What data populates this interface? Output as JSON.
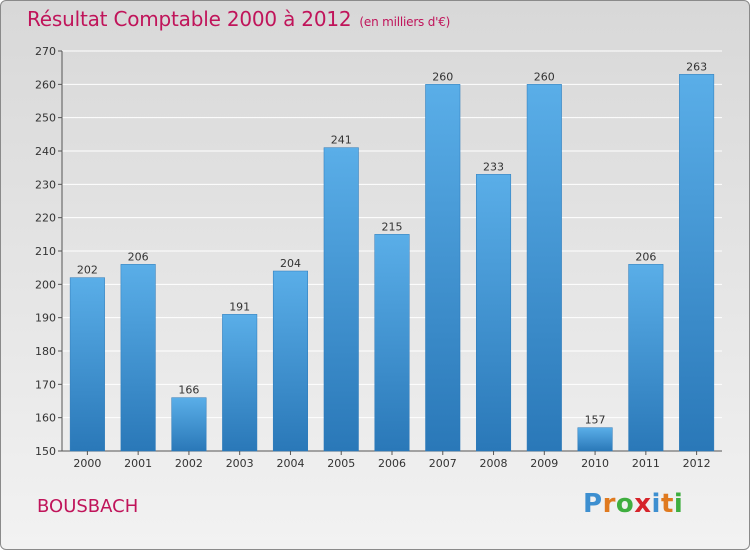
{
  "page": {
    "title": "Résultat Comptable 2000 à 2012",
    "unit": "(en milliers d'€)",
    "place": "BOUSBACH",
    "logo": "Proxiti",
    "logo_letters": [
      {
        "ch": "P",
        "color": "#3d8fd0"
      },
      {
        "ch": "r",
        "color": "#e07a1f"
      },
      {
        "ch": "o",
        "color": "#3fae3f"
      },
      {
        "ch": "x",
        "color": "#d6232a"
      },
      {
        "ch": "i",
        "color": "#3d8fd0"
      },
      {
        "ch": "t",
        "color": "#e07a1f"
      },
      {
        "ch": "i",
        "color": "#3fae3f"
      }
    ]
  },
  "colors": {
    "title": "#c0145a",
    "bar_light": "#5aaee8",
    "bar_dark": "#2a78b8",
    "grid": "#ffffff"
  },
  "chart_data": {
    "type": "bar",
    "title": "Résultat Comptable 2000 à 2012",
    "subtitle": "(en milliers d'€)",
    "xlabel": "",
    "ylabel": "",
    "categories": [
      "2000",
      "2001",
      "2002",
      "2003",
      "2004",
      "2005",
      "2006",
      "2007",
      "2008",
      "2009",
      "2010",
      "2011",
      "2012"
    ],
    "values": [
      202,
      206,
      166,
      191,
      204,
      241,
      215,
      260,
      233,
      260,
      157,
      206,
      263
    ],
    "ylim": [
      150,
      270
    ],
    "yticks": [
      150,
      160,
      170,
      180,
      190,
      200,
      210,
      220,
      230,
      240,
      250,
      260,
      270
    ],
    "grid": true,
    "legend": "none"
  }
}
